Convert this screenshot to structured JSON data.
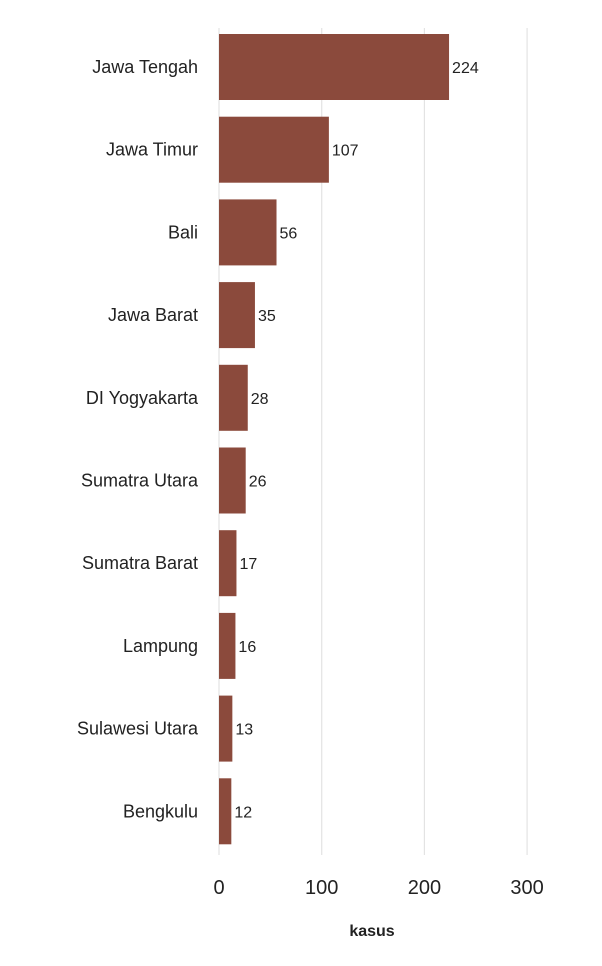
{
  "chart_data": {
    "type": "bar",
    "orientation": "horizontal",
    "categories": [
      "Jawa Tengah",
      "Jawa Timur",
      "Bali",
      "Jawa Barat",
      "DI Yogyakarta",
      "Sumatra Utara",
      "Sumatra Barat",
      "Lampung",
      "Sulawesi Utara",
      "Bengkulu"
    ],
    "values": [
      224,
      107,
      56,
      35,
      28,
      26,
      17,
      16,
      13,
      12
    ],
    "data_labels": [
      "224",
      "107",
      "56",
      "35",
      "28",
      "26",
      "17",
      "16",
      "13",
      "12"
    ],
    "xlabel": "kasus",
    "ylabel": "",
    "xlim": [
      0,
      300
    ],
    "x_ticks": [
      0,
      100,
      200,
      300
    ],
    "x_tick_labels": [
      "0",
      "100",
      "200",
      "300"
    ],
    "grid": "vertical",
    "legend": "none",
    "bar_color": "#8b4a3c",
    "grid_color": "#e3e3e3"
  }
}
